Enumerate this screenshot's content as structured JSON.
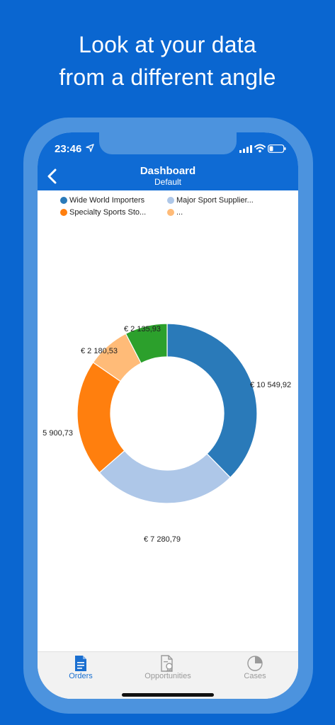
{
  "promo": {
    "line1": "Look at your data",
    "line2": "from a different angle"
  },
  "status_bar": {
    "time": "23:46"
  },
  "nav": {
    "title": "Dashboard",
    "subtitle": "Default"
  },
  "legend": [
    {
      "label": "Wide World Importers",
      "color": "#2a7ab9"
    },
    {
      "label": "Major Sport Supplier...",
      "color": "#aec7e8"
    },
    {
      "label": "Specialty Sports Sto...",
      "color": "#ff7f0e"
    },
    {
      "label": "...",
      "color": "#ffbb78"
    }
  ],
  "chart_data": {
    "type": "pie",
    "style": "donut",
    "categories": [
      "Wide World Importers",
      "Major Sport Supplier...",
      "Specialty Sports Sto...",
      "...",
      ""
    ],
    "values": [
      10549.92,
      7280.79,
      5900.73,
      2180.53,
      2135.93
    ],
    "labels": [
      "€ 10 549,92",
      "€ 7 280,79",
      "5 900,73",
      "€ 2 180,53",
      "€ 2 135,93"
    ],
    "colors": [
      "#2a7ab9",
      "#aec7e8",
      "#ff7f0e",
      "#ffbb78",
      "#2ca02c"
    ],
    "legend_position": "top"
  },
  "tabs": [
    {
      "label": "Orders",
      "icon": "document-icon",
      "active": true
    },
    {
      "label": "Opportunities",
      "icon": "certificate-icon",
      "active": false
    },
    {
      "label": "Cases",
      "icon": "pie-chart-icon",
      "active": false
    }
  ],
  "colors": {
    "background": "#0a66d0",
    "navbar": "#0f6bd4",
    "tab_active": "#1a6fd0",
    "tab_inactive": "#9a9a9a"
  }
}
